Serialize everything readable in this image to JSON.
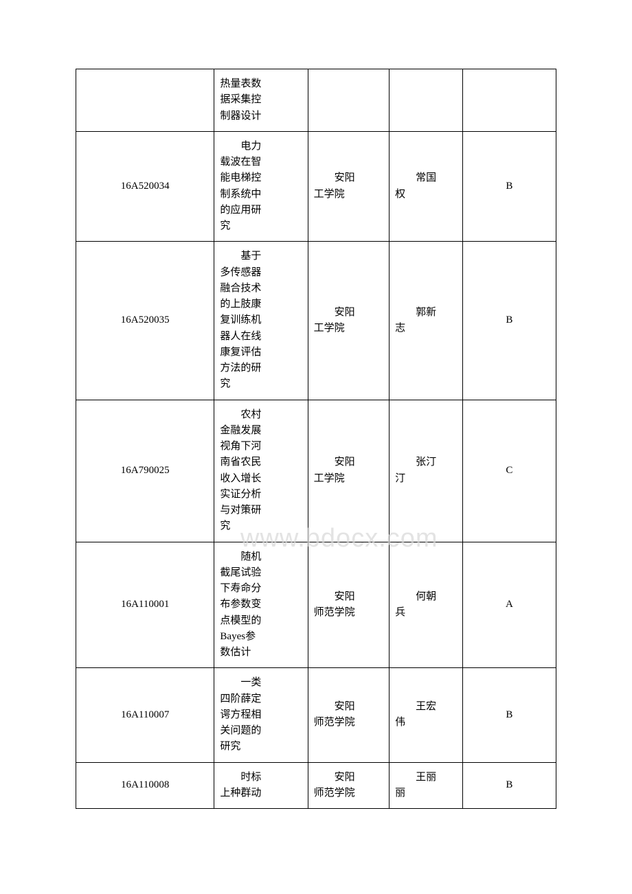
{
  "watermark_text": "www.bdocx.com",
  "table": {
    "columns": {
      "id_width": 170,
      "title_width": 115,
      "school_width": 100,
      "person_width": 90,
      "grade_width": 115
    },
    "border_color": "#000000",
    "text_color": "#000000",
    "background_color": "#ffffff",
    "font_size": 15,
    "rows": [
      {
        "id": "",
        "title": "热量表数据采集控制器设计",
        "school": "",
        "person": "",
        "grade": ""
      },
      {
        "id": "16A520034",
        "title": "电力载波在智能电梯控制系统中的应用研究",
        "school": "安阳工学院",
        "person": "常国权",
        "grade": "B"
      },
      {
        "id": "16A520035",
        "title": "基于多传感器融合技术的上肢康复训练机器人在线康复评估方法的研究",
        "school": "安阳工学院",
        "person": "郭新志",
        "grade": "B"
      },
      {
        "id": "16A790025",
        "title": "农村金融发展视角下河南省农民收入增长实证分析与对策研究",
        "school": "安阳工学院",
        "person": "张汀汀",
        "grade": "C"
      },
      {
        "id": "16A110001",
        "title": "随机截尾试验下寿命分布参数变点模型的Bayes参数估计",
        "school": "安阳师范学院",
        "person": "何朝兵",
        "grade": "A"
      },
      {
        "id": "16A110007",
        "title": "一类四阶薛定谔方程相关问题的研究",
        "school": "安阳师范学院",
        "person": "王宏伟",
        "grade": "B"
      },
      {
        "id": "16A110008",
        "title": "时标上种群动",
        "school": "安阳师范学院",
        "person": "王丽丽",
        "grade": "B"
      }
    ]
  },
  "render": {
    "rows": [
      {
        "id": "",
        "title_html": "热量表数<br>据采集控<br>制器设计",
        "school_html": "",
        "person_html": "",
        "grade": ""
      },
      {
        "id": "16A520034",
        "title_html": "&#x3000;&#x3000;电力<br>载波在智<br>能电梯控<br>制系统中<br>的应用研<br>究",
        "school_html": "&#x3000;&#x3000;安阳<br>工学院",
        "person_html": "&#x3000;&#x3000;常国<br>权",
        "grade": "B"
      },
      {
        "id": "16A520035",
        "title_html": "&#x3000;&#x3000;基于<br>多传感器<br>融合技术<br>的上肢康<br>复训练机<br>器人在线<br>康复评估<br>方法的研<br>究",
        "school_html": "&#x3000;&#x3000;安阳<br>工学院",
        "person_html": "&#x3000;&#x3000;郭新<br>志",
        "grade": "B"
      },
      {
        "id": "16A790025",
        "title_html": "&#x3000;&#x3000;农村<br>金融发展<br>视角下河<br>南省农民<br>收入增长<br>实证分析<br>与对策研<br>究",
        "school_html": "&#x3000;&#x3000;安阳<br>工学院",
        "person_html": "&#x3000;&#x3000;张汀<br>汀",
        "grade": "C"
      },
      {
        "id": "16A110001",
        "title_html": "&#x3000;&#x3000;随机<br>截尾试验<br>下寿命分<br>布参数变<br>点模型的<br>Bayes参<br>数估计",
        "school_html": "&#x3000;&#x3000;安阳<br>师范学院",
        "person_html": "&#x3000;&#x3000;何朝<br>兵",
        "grade": "A"
      },
      {
        "id": "16A110007",
        "title_html": "&#x3000;&#x3000;一类<br>四阶薛定<br>谔方程相<br>关问题的<br>研究",
        "school_html": "&#x3000;&#x3000;安阳<br>师范学院",
        "person_html": "&#x3000;&#x3000;王宏<br>伟",
        "grade": "B"
      },
      {
        "id": "16A110008",
        "title_html": "&#x3000;&#x3000;时标<br>上种群动",
        "school_html": "&#x3000;&#x3000;安阳<br>师范学院",
        "person_html": "&#x3000;&#x3000;王丽<br>丽",
        "grade": "B"
      }
    ]
  }
}
